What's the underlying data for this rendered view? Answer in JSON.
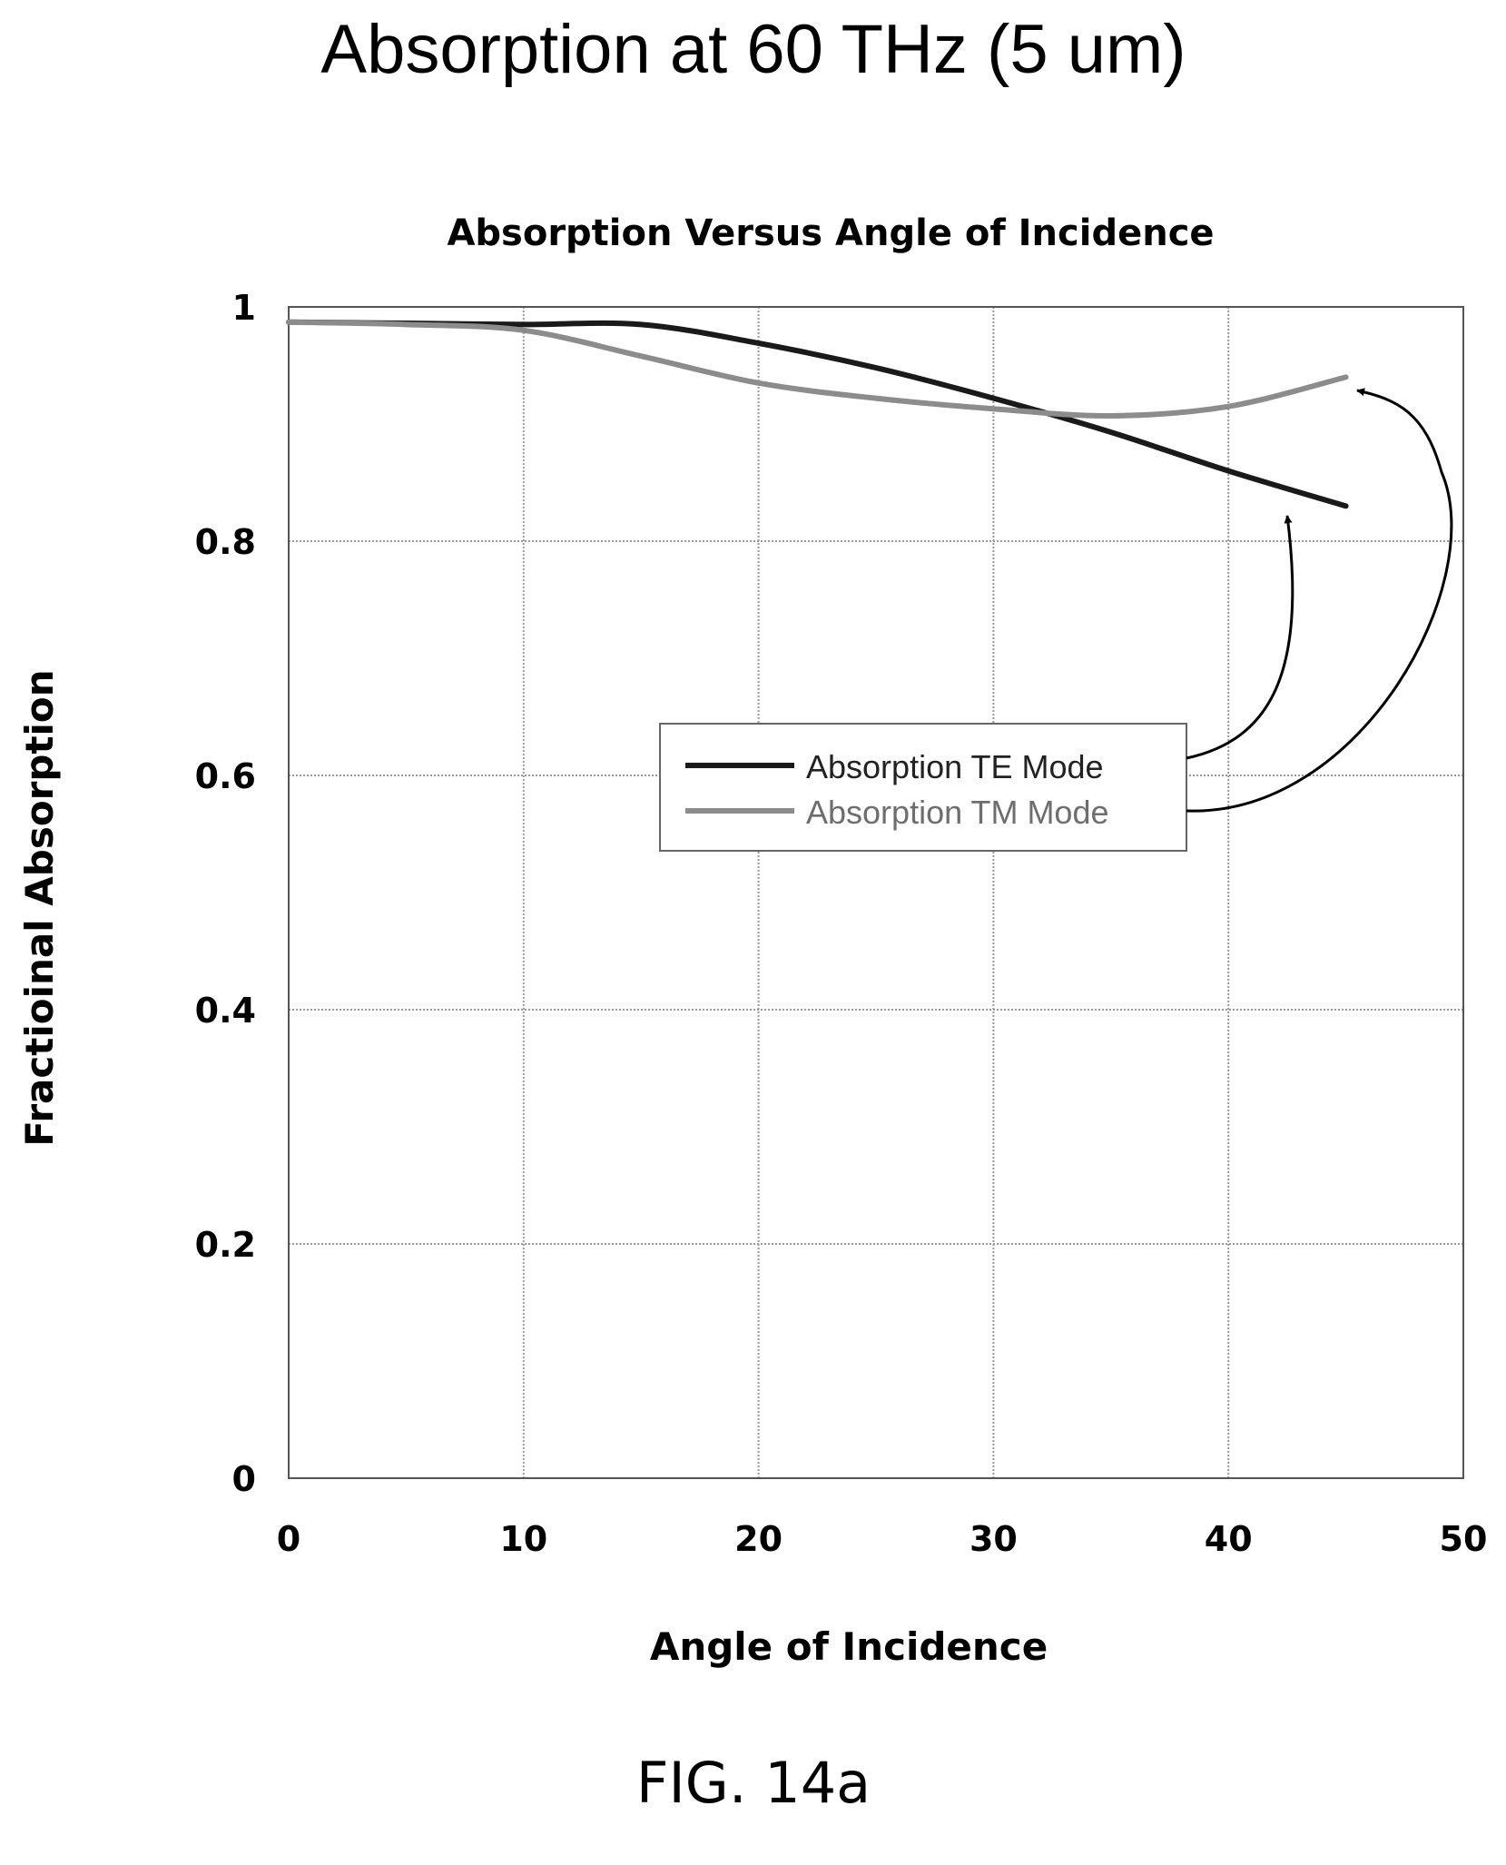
{
  "figure_label": "FIG. 14a",
  "page_title": "Absorption at 60 THz (5 um)",
  "colors": {
    "te": "#1a1a1a",
    "tm": "#8c8c8c",
    "grid": "#9a9a9a",
    "ink": "#000000"
  },
  "chart_data": {
    "type": "line",
    "title": "Absorption Versus Angle of Incidence",
    "xlabel": "Angle of Incidence",
    "ylabel": "Fractioinal Absorption",
    "xlim": [
      0,
      50
    ],
    "ylim": [
      0,
      1
    ],
    "xticks": [
      0,
      10,
      20,
      30,
      40,
      50
    ],
    "yticks": [
      0,
      0.2,
      0.4,
      0.6,
      0.8,
      1
    ],
    "ytick_labels": [
      "0",
      "0.2",
      "0.4",
      "0.6",
      "0.8",
      "1"
    ],
    "grid": true,
    "legend_position": "center-right",
    "series": [
      {
        "name": "Absorption TE Mode",
        "x": [
          0,
          5,
          10,
          15,
          20,
          25,
          30,
          35,
          40,
          45
        ],
        "y": [
          0.987,
          0.986,
          0.985,
          0.985,
          0.969,
          0.948,
          0.922,
          0.893,
          0.86,
          0.83
        ]
      },
      {
        "name": "Absorption TM Mode",
        "x": [
          0,
          5,
          10,
          15,
          20,
          25,
          30,
          35,
          40,
          45
        ],
        "y": [
          0.987,
          0.985,
          0.98,
          0.958,
          0.935,
          0.922,
          0.913,
          0.907,
          0.915,
          0.94
        ]
      }
    ]
  }
}
